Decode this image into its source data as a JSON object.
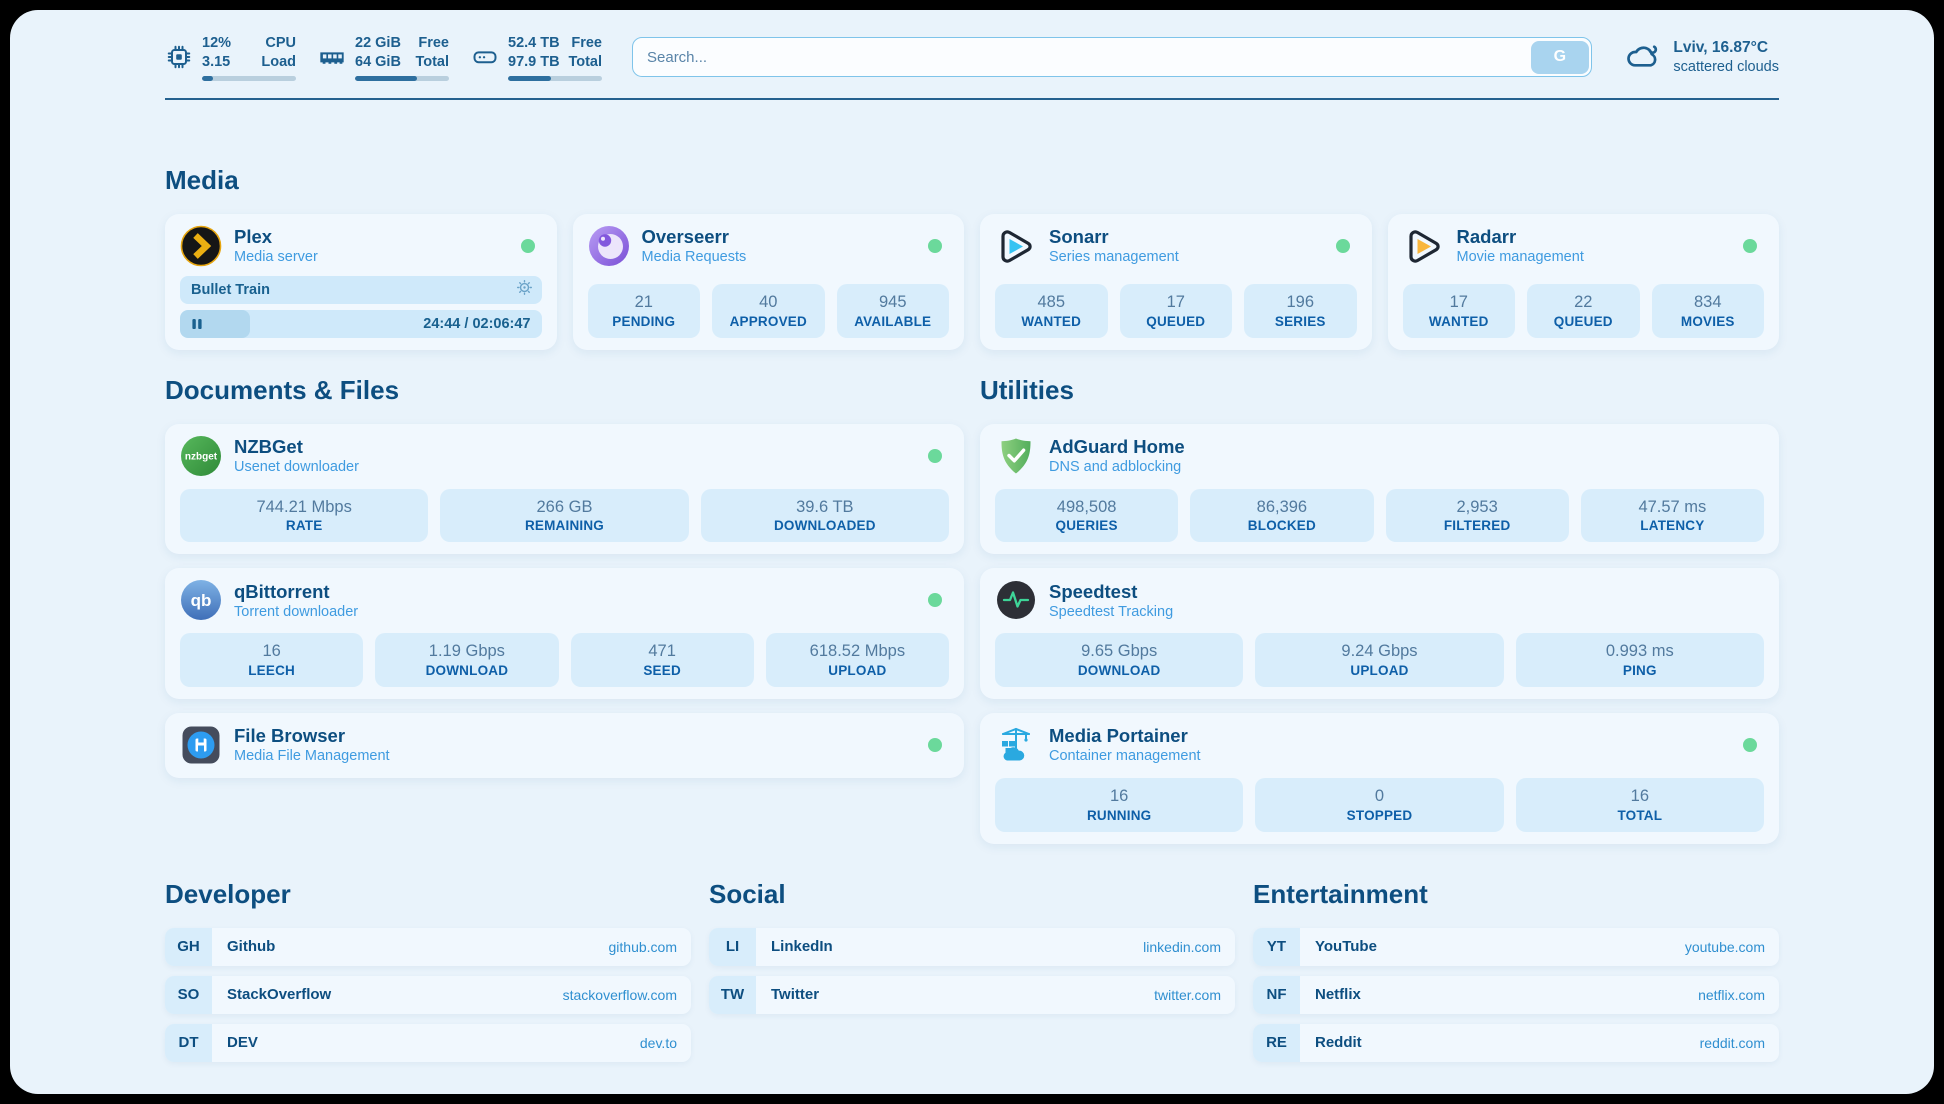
{
  "theme": {
    "page-bg": "#e9f3fb",
    "card-bg": "#f1f8fe",
    "box-bg": "#d8edfb",
    "ink": "#1d5f8f",
    "navy": "#0d4e80",
    "subtitle": "#3f9be0",
    "value": "#527a9e",
    "label": "#0e5fa8",
    "url": "#2f8fd0",
    "green": "#6bd99b",
    "track": "#b9cfde",
    "fill": "#2e6f9f",
    "np-bg": "#cfe9fa",
    "np-fill": "#b2d8ef",
    "search-border": "#7fc4ea",
    "g-btn": "#a9d4ef"
  },
  "header": {
    "system": {
      "cpu": {
        "icon": "cpu-icon",
        "values": [
          "12%",
          "3.15"
        ],
        "labels": [
          "CPU",
          "Load"
        ],
        "progress_percent": 12
      },
      "memory": {
        "icon": "ram-icon",
        "values": [
          "22 GiB",
          "64 GiB"
        ],
        "labels": [
          "Free",
          "Total"
        ],
        "progress_percent": 66
      },
      "disk": {
        "icon": "disk-icon",
        "values": [
          "52.4 TB",
          "97.9 TB"
        ],
        "labels": [
          "Free",
          "Total"
        ],
        "progress_percent": 46
      }
    },
    "search": {
      "placeholder": "Search...",
      "button_label": "G"
    },
    "weather": {
      "location_temp": "Lviv, 16.87°C",
      "condition": "scattered clouds"
    }
  },
  "sections": {
    "media": {
      "title": "Media",
      "apps": [
        {
          "name": "Plex",
          "subtitle": "Media server",
          "online": true,
          "now_playing": {
            "title": "Bullet Train",
            "time": "24:44 / 02:06:47",
            "progress_percent": 19.5
          }
        },
        {
          "name": "Overseerr",
          "subtitle": "Media Requests",
          "online": true,
          "stats": [
            {
              "value": "21",
              "label": "PENDING"
            },
            {
              "value": "40",
              "label": "APPROVED"
            },
            {
              "value": "945",
              "label": "AVAILABLE"
            }
          ]
        },
        {
          "name": "Sonarr",
          "subtitle": "Series management",
          "online": true,
          "stats": [
            {
              "value": "485",
              "label": "WANTED"
            },
            {
              "value": "17",
              "label": "QUEUED"
            },
            {
              "value": "196",
              "label": "SERIES"
            }
          ]
        },
        {
          "name": "Radarr",
          "subtitle": "Movie management",
          "online": true,
          "stats": [
            {
              "value": "17",
              "label": "WANTED"
            },
            {
              "value": "22",
              "label": "QUEUED"
            },
            {
              "value": "834",
              "label": "MOVIES"
            }
          ]
        }
      ]
    },
    "documents": {
      "title": "Documents & Files",
      "apps": [
        {
          "name": "NZBGet",
          "subtitle": "Usenet downloader",
          "online": true,
          "stats": [
            {
              "value": "744.21 Mbps",
              "label": "RATE"
            },
            {
              "value": "266 GB",
              "label": "REMAINING"
            },
            {
              "value": "39.6 TB",
              "label": "DOWNLOADED"
            }
          ]
        },
        {
          "name": "qBittorrent",
          "subtitle": "Torrent downloader",
          "online": true,
          "stats": [
            {
              "value": "16",
              "label": "LEECH"
            },
            {
              "value": "1.19 Gbps",
              "label": "DOWNLOAD"
            },
            {
              "value": "471",
              "label": "SEED"
            },
            {
              "value": "618.52 Mbps",
              "label": "UPLOAD"
            }
          ]
        },
        {
          "name": "File Browser",
          "subtitle": "Media File Management",
          "online": true
        }
      ]
    },
    "utilities": {
      "title": "Utilities",
      "apps": [
        {
          "name": "AdGuard Home",
          "subtitle": "DNS and adblocking",
          "stats": [
            {
              "value": "498,508",
              "label": "QUERIES"
            },
            {
              "value": "86,396",
              "label": "BLOCKED"
            },
            {
              "value": "2,953",
              "label": "FILTERED"
            },
            {
              "value": "47.57 ms",
              "label": "LATENCY"
            }
          ]
        },
        {
          "name": "Speedtest",
          "subtitle": "Speedtest Tracking",
          "stats": [
            {
              "value": "9.65 Gbps",
              "label": "DOWNLOAD"
            },
            {
              "value": "9.24 Gbps",
              "label": "UPLOAD"
            },
            {
              "value": "0.993 ms",
              "label": "PING"
            }
          ]
        },
        {
          "name": "Media Portainer",
          "subtitle": "Container management",
          "online": true,
          "stats": [
            {
              "value": "16",
              "label": "RUNNING"
            },
            {
              "value": "0",
              "label": "STOPPED"
            },
            {
              "value": "16",
              "label": "TOTAL"
            }
          ]
        }
      ]
    },
    "developer": {
      "title": "Developer",
      "bookmarks": [
        {
          "abbr": "GH",
          "name": "Github",
          "url": "github.com"
        },
        {
          "abbr": "SO",
          "name": "StackOverflow",
          "url": "stackoverflow.com"
        },
        {
          "abbr": "DT",
          "name": "DEV",
          "url": "dev.to"
        }
      ]
    },
    "social": {
      "title": "Social",
      "bookmarks": [
        {
          "abbr": "LI",
          "name": "LinkedIn",
          "url": "linkedin.com"
        },
        {
          "abbr": "TW",
          "name": "Twitter",
          "url": "twitter.com"
        }
      ]
    },
    "entertainment": {
      "title": "Entertainment",
      "bookmarks": [
        {
          "abbr": "YT",
          "name": "YouTube",
          "url": "youtube.com"
        },
        {
          "abbr": "NF",
          "name": "Netflix",
          "url": "netflix.com"
        },
        {
          "abbr": "RE",
          "name": "Reddit",
          "url": "reddit.com"
        }
      ]
    }
  }
}
